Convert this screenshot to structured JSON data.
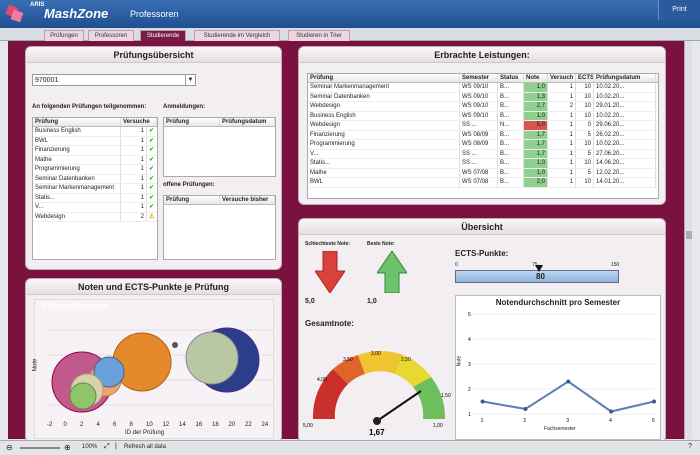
{
  "header": {
    "brand_small": "ARIS",
    "brand": "MashZone",
    "title": "Professoren",
    "print": "Print"
  },
  "tabs": [
    "Prüfungen",
    "Professoren",
    "Studierende",
    "Studierende im Vergleich",
    "Studieren in Trier"
  ],
  "pruefung": {
    "title": "Prüfungsübersicht",
    "select_value": "970001",
    "participated_label": "An folgenden Prüfungen teilgenommen:",
    "col_exam": "Prüfung",
    "col_tries": "Versuche",
    "rows": [
      {
        "name": "Business English",
        "tries": "1",
        "status": "ok"
      },
      {
        "name": "BWL",
        "tries": "1",
        "status": "ok"
      },
      {
        "name": "Finanzierung",
        "tries": "1",
        "status": "ok"
      },
      {
        "name": "Mathe",
        "tries": "1",
        "status": "ok"
      },
      {
        "name": "Programmierung",
        "tries": "1",
        "status": "ok"
      },
      {
        "name": "Seminar Datenbanken",
        "tries": "1",
        "status": "ok"
      },
      {
        "name": "Seminar Markenmanagement",
        "tries": "1",
        "status": "ok"
      },
      {
        "name": "Statis...",
        "tries": "1",
        "status": "ok"
      },
      {
        "name": "V...",
        "tries": "1",
        "status": "ok"
      },
      {
        "name": "Webdesign",
        "tries": "2",
        "status": "warn"
      }
    ],
    "registrations_label": "Anmeldungen:",
    "reg_col1": "Prüfung",
    "reg_col2": "Prüfungsdatum",
    "open_label": "offene Prüfungen:",
    "open_col1": "Prüfung",
    "open_col2": "Versuche bisher"
  },
  "leistungen": {
    "title": "Erbrachte Leistungen:",
    "cols": [
      "Prüfung",
      "Semester",
      "Status",
      "Note",
      "Versuch",
      "ECTS",
      "Prüfungsdatum"
    ],
    "rows": [
      [
        "Seminar Markenmanagement",
        "WS 09/10",
        "B...",
        "1,0",
        "1",
        "10",
        "10.02.20..."
      ],
      [
        "Seminar Datenbanken",
        "WS 09/10",
        "B...",
        "1,3",
        "1",
        "10",
        "10.02.20..."
      ],
      [
        "Webdesign",
        "WS 09/10",
        "B...",
        "2,7",
        "2",
        "10",
        "29.01.20..."
      ],
      [
        "Business English",
        "WS 09/10",
        "B...",
        "1,0",
        "1",
        "10",
        "10.02.20..."
      ],
      [
        "Webdesign",
        "SS ...",
        "N...",
        "5,0",
        "1",
        "0",
        "29.06.20..."
      ],
      [
        "Finanzierung",
        "WS 08/09",
        "B...",
        "1,7",
        "1",
        "5",
        "26.02.20..."
      ],
      [
        "Programmierung",
        "WS 08/09",
        "B...",
        "1,7",
        "1",
        "10",
        "10.02.20..."
      ],
      [
        "V...",
        "SS ...",
        "B...",
        "1,7",
        "1",
        "5",
        "27.06.20..."
      ],
      [
        "Statis...",
        "SS ...",
        "B...",
        "1,0",
        "1",
        "10",
        "14.06.20..."
      ],
      [
        "Mathe",
        "WS 07/08",
        "B...",
        "1,0",
        "1",
        "5",
        "12.02.20..."
      ],
      [
        "BWL",
        "WS 07/08",
        "B...",
        "2,0",
        "1",
        "10",
        "14.01.20..."
      ]
    ]
  },
  "noten": {
    "title": "Noten und ECTS-Punkte je Prüfung",
    "chart_label": "Prüfungsdiagramm",
    "xlabel": "ID der Prüfung",
    "ylabel": "Note",
    "xticks": [
      "-2",
      "0",
      "2",
      "4",
      "6",
      "8",
      "10",
      "12",
      "14",
      "16",
      "18",
      "20",
      "22",
      "24"
    ]
  },
  "uebersicht": {
    "title": "Übersicht",
    "worst_label": "Schlechteste Note:",
    "best_label": "Beste Note:",
    "worst_value": "5,0",
    "best_value": "1,0",
    "ects_label": "ECTS-Punkte:",
    "ects_ticks": [
      "0",
      "75",
      "150"
    ],
    "ects_value": "80",
    "gesamt_label": "Gesamtnote:",
    "gesamt_value": "1,67",
    "gauge_ticks": [
      "5,00",
      "4,00",
      "3,50",
      "3,00",
      "2,50",
      "1,50",
      "1,00"
    ]
  },
  "chart_data": {
    "type": "line",
    "title": "Notendurchschnitt pro Semester",
    "xlabel": "Fachsemester",
    "ylabel": "Note",
    "x": [
      1,
      2,
      3,
      4,
      5
    ],
    "values": [
      1.5,
      1.2,
      2.3,
      1.1,
      1.5
    ],
    "xlim": [
      0.8,
      5
    ],
    "ylim": [
      1,
      5
    ]
  },
  "status": {
    "zoom": "100%",
    "refresh": "Refresh all data"
  }
}
